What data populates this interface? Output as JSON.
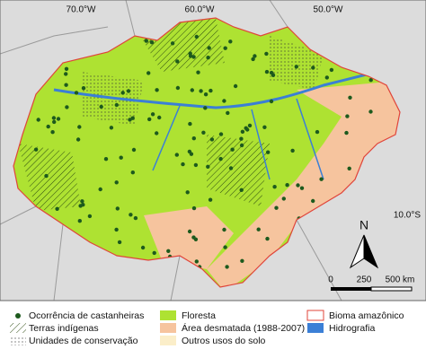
{
  "map": {
    "graticule_labels": [
      "70.0°W",
      "60.0°W",
      "50.0°W",
      "10.0°S"
    ],
    "north_label": "N",
    "scale_labels": [
      "0",
      "250",
      "500 km"
    ]
  },
  "legend": {
    "items": [
      "Ocorrência de castanheiras",
      "Floresta",
      "Bioma amazônico",
      "Terras indígenas",
      "Área desmatada (1988-2007)",
      "Hidrografia",
      "Unidades de conservação",
      "Outros usos do solo"
    ]
  }
}
